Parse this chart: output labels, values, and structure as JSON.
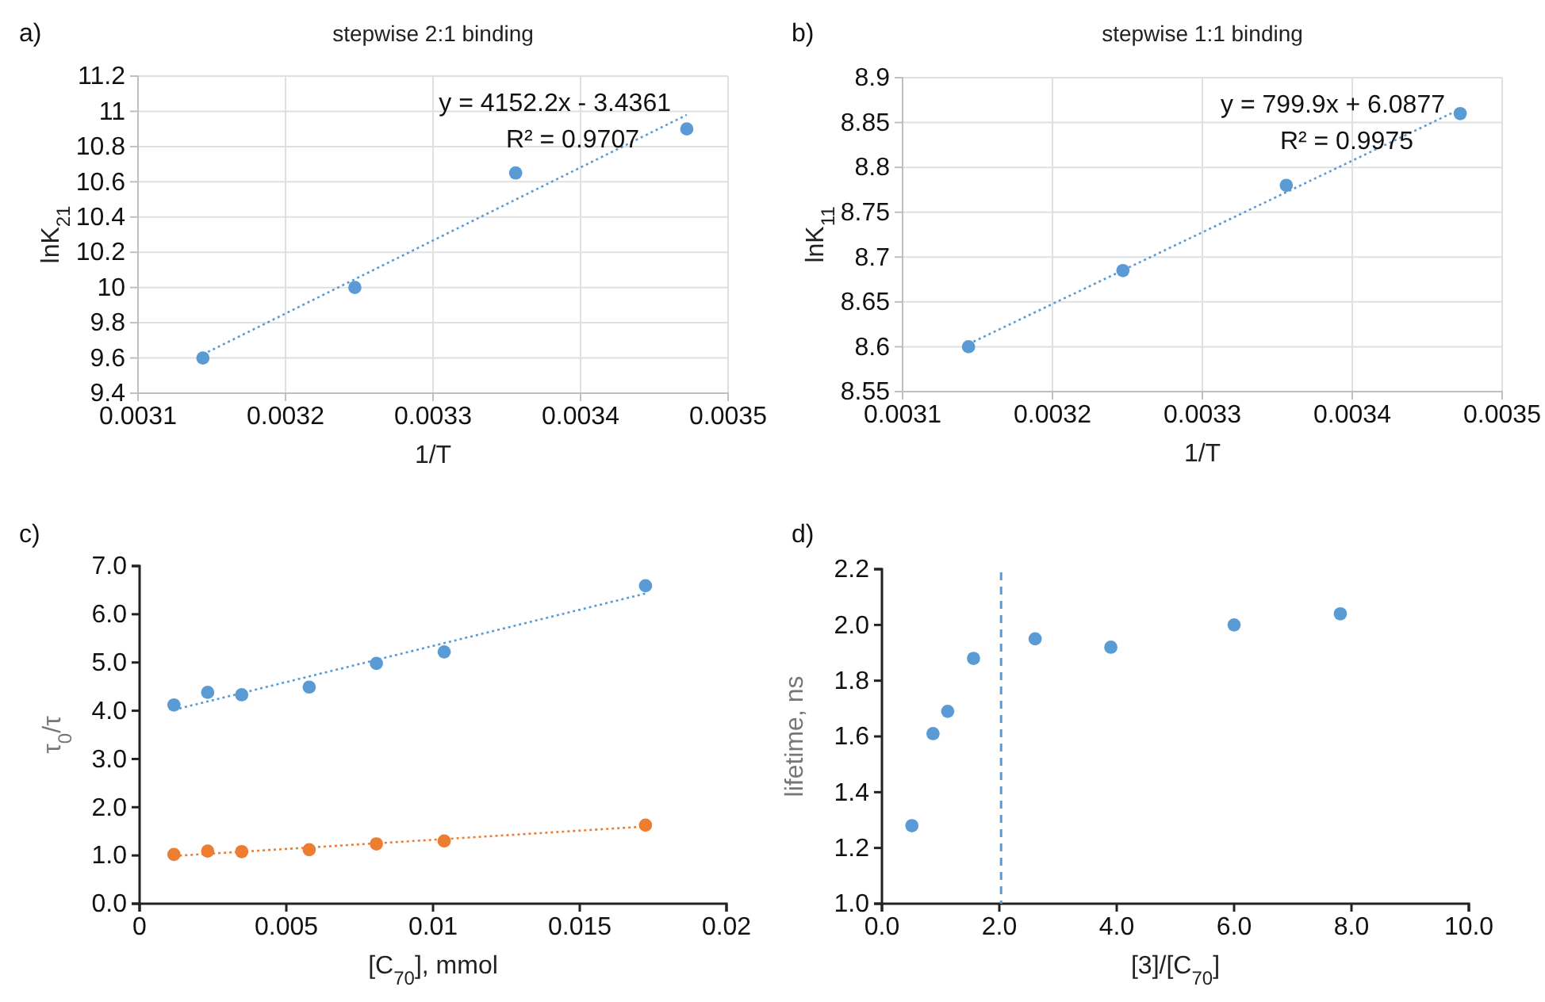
{
  "chart_data": [
    {
      "type": "scatter",
      "title": "stepwise 2:1 binding",
      "xlabel": "1/T",
      "ylabel": "lnK$_{21}$",
      "grid": true,
      "marker": "circle",
      "xlim": [
        0.0031,
        0.0035
      ],
      "xticks": [
        0.0031,
        0.0032,
        0.0033,
        0.0034,
        0.0035
      ],
      "ylim": [
        9.4,
        11.2
      ],
      "yticks": [
        9.4,
        9.6,
        9.8,
        10,
        10.2,
        10.4,
        10.6,
        10.8,
        11,
        11.2
      ],
      "annotations": [
        "a)",
        "y = 4152.2x - 3.4361",
        "R² = 0.9707"
      ],
      "series": [
        {
          "type": "scatter",
          "color": "#5b9bd5",
          "x": [
            0.003144,
            0.003247,
            0.003356,
            0.003472
          ],
          "values": [
            9.6,
            10.0,
            10.65,
            10.9
          ]
        },
        {
          "type": "line",
          "color": "#5b9bd5",
          "line_style": "dotted",
          "marker": "none",
          "x": [
            0.003144,
            0.003472
          ],
          "values": [
            9.62,
            10.98
          ]
        }
      ]
    },
    {
      "type": "scatter",
      "title": "stepwise 1:1 binding",
      "xlabel": "1/T",
      "ylabel": "lnK$_{11}$",
      "grid": true,
      "marker": "circle",
      "xlim": [
        0.0031,
        0.0035
      ],
      "xticks": [
        0.0031,
        0.0032,
        0.0033,
        0.0034,
        0.0035
      ],
      "ylim": [
        8.55,
        8.9
      ],
      "yticks": [
        8.55,
        8.6,
        8.65,
        8.7,
        8.75,
        8.8,
        8.85,
        8.9
      ],
      "annotations": [
        "b)",
        "y = 799.9x + 6.0877",
        "R² = 0.9975"
      ],
      "series": [
        {
          "type": "scatter",
          "color": "#5b9bd5",
          "x": [
            0.003144,
            0.003247,
            0.003356,
            0.003472
          ],
          "values": [
            8.6,
            8.685,
            8.78,
            8.86
          ]
        },
        {
          "type": "line",
          "color": "#5b9bd5",
          "line_style": "dotted",
          "marker": "none",
          "x": [
            0.003144,
            0.003472
          ],
          "values": [
            8.603,
            8.865
          ]
        }
      ]
    },
    {
      "type": "scatter",
      "xlabel": "[C$_{70}$], mmol",
      "ylabel": "τ$_{0}$/τ",
      "marker": "circle",
      "xlim": [
        0,
        0.02
      ],
      "xticks": [
        0,
        0.005,
        0.01,
        0.015,
        0.02
      ],
      "ylim": [
        0,
        7
      ],
      "yticks": [
        {
          "value": 0,
          "label": "0.0"
        },
        {
          "value": 1,
          "label": "1.0"
        },
        {
          "value": 2,
          "label": "2.0"
        },
        {
          "value": 3,
          "label": "3.0"
        },
        {
          "value": 4,
          "label": "4.0"
        },
        {
          "value": 5,
          "label": "5.0"
        },
        {
          "value": 6,
          "label": "6.0"
        },
        {
          "value": 7,
          "label": "7.0"
        }
      ],
      "annotations": [
        "c)"
      ],
      "series": [
        {
          "type": "scatter",
          "color": "#5b9bd5",
          "x": [
            0.00117,
            0.00232,
            0.00348,
            0.00578,
            0.00807,
            0.01038,
            0.01724
          ],
          "values": [
            4.12,
            4.38,
            4.33,
            4.49,
            4.98,
            5.22,
            6.59
          ]
        },
        {
          "type": "line",
          "color": "#5b9bd5",
          "line_style": "dotted",
          "marker": "none",
          "x": [
            0.00117,
            0.01724
          ],
          "values": [
            4.02,
            6.43
          ]
        },
        {
          "type": "scatter",
          "color": "#ed7d31",
          "x": [
            0.00117,
            0.00232,
            0.00348,
            0.00578,
            0.00807,
            0.01038,
            0.01724
          ],
          "values": [
            1.02,
            1.09,
            1.08,
            1.12,
            1.24,
            1.3,
            1.63
          ]
        },
        {
          "type": "line",
          "color": "#ed7d31",
          "line_style": "dotted",
          "marker": "none",
          "x": [
            0.00117,
            0.01724
          ],
          "values": [
            0.99,
            1.6
          ]
        }
      ]
    },
    {
      "type": "scatter",
      "xlabel": "[3]/[C$_{70}$]",
      "ylabel": "lifetime, ns",
      "marker": "circle",
      "xlim": [
        0,
        10
      ],
      "xticks": [
        {
          "value": 0,
          "label": "0.0"
        },
        {
          "value": 2,
          "label": "2.0"
        },
        {
          "value": 4,
          "label": "4.0"
        },
        {
          "value": 6,
          "label": "6.0"
        },
        {
          "value": 8,
          "label": "8.0"
        },
        {
          "value": 10,
          "label": "10.0"
        }
      ],
      "ylim": [
        1,
        2.2
      ],
      "yticks": [
        {
          "value": 1,
          "label": "1.0"
        },
        {
          "value": 1.2,
          "label": "1.2"
        },
        {
          "value": 1.4,
          "label": "1.4"
        },
        {
          "value": 1.6,
          "label": "1.6"
        },
        {
          "value": 1.8,
          "label": "1.8"
        },
        {
          "value": 2,
          "label": "2.0"
        },
        {
          "value": 2.2,
          "label": "2.2"
        }
      ],
      "annotations": [
        "d)"
      ],
      "ref_lines": [
        {
          "axis": "x",
          "value": 2.03,
          "color": "#5b9bd5",
          "line_style": "dashed"
        }
      ],
      "series": [
        {
          "type": "scatter",
          "color": "#5b9bd5",
          "x": [
            0.51,
            0.87,
            1.12,
            1.56,
            2.61,
            3.9,
            6.0,
            7.81
          ],
          "values": [
            1.28,
            1.61,
            1.69,
            1.88,
            1.95,
            1.92,
            2.0,
            2.04
          ]
        }
      ]
    }
  ]
}
